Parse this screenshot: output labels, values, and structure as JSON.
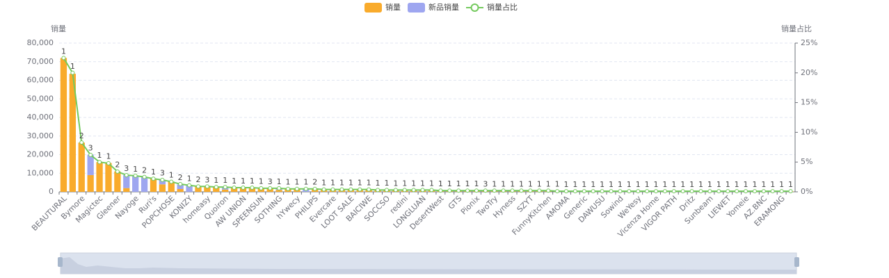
{
  "chart_data": {
    "type": "bar",
    "y_axis_label": "销量",
    "y2_axis_label": "销量占比",
    "categories": [
      "BEAUTURAL",
      null,
      "Bymore",
      null,
      "Magictec",
      null,
      "Gleener",
      null,
      "Nayoge",
      null,
      "Ruri's",
      null,
      "POPCHOSE",
      null,
      "KONIZY",
      null,
      "homeasy",
      null,
      "Quoiron",
      null,
      "AW UNION",
      null,
      "SPEENSUN",
      null,
      "SOTHING",
      null,
      "hYwecy",
      null,
      "PHILIPS",
      null,
      "Evercare",
      null,
      "LOOT SALE",
      null,
      "BAICIWE",
      null,
      "SOCCSO",
      null,
      "redini",
      null,
      "LONGLUAN",
      null,
      "DesertWest",
      null,
      "GTS",
      null,
      "Pionix",
      null,
      "TwoTry",
      null,
      "Hyness",
      null,
      "SZYT",
      null,
      "FunnyKitchen",
      null,
      "AMOMA",
      null,
      "Generic",
      null,
      "DAWUSU",
      null,
      "Sowind",
      null,
      "WeYesy",
      null,
      "Vicenza Home",
      null,
      "VIGOR PATH",
      null,
      "Dritz",
      null,
      "Sunbeam",
      null,
      "LIEWET",
      null,
      "Yomeie",
      null,
      "AZ.BNC",
      null,
      "ERAMONG",
      null
    ],
    "series": [
      {
        "name": "销量",
        "type": "bar",
        "color": "#f9ab2c",
        "values": [
          72000,
          63500,
          26500,
          9000,
          16000,
          15500,
          11000,
          2000,
          0,
          0,
          7000,
          4000,
          5500,
          1500,
          0,
          3000,
          2800,
          2600,
          1200,
          2300,
          2200,
          2100,
          2000,
          1900,
          1000,
          1700,
          1600,
          0,
          1500,
          1400,
          1400,
          1300,
          1250,
          1200,
          1150,
          1100,
          1050,
          1000,
          960,
          920,
          880,
          840,
          800,
          770,
          740,
          710,
          680,
          650,
          620,
          600,
          580,
          560,
          540,
          520,
          500,
          480,
          460,
          440,
          420,
          400,
          390,
          380,
          370,
          360,
          350,
          340,
          330,
          320,
          310,
          300,
          290,
          280,
          270,
          260,
          250,
          240,
          230,
          220,
          210,
          200,
          190,
          180
        ]
      },
      {
        "name": "新品销量",
        "type": "bar",
        "color": "#9ea6f0",
        "values": [
          0,
          0,
          0,
          11000,
          0,
          0,
          0,
          7000,
          8500,
          8000,
          0,
          2500,
          0,
          2500,
          3500,
          0,
          0,
          0,
          1200,
          0,
          0,
          0,
          0,
          0,
          800,
          0,
          0,
          1500,
          0,
          0,
          0,
          0,
          0,
          0,
          0,
          0,
          0,
          0,
          0,
          0,
          0,
          0,
          0,
          0,
          0,
          0,
          0,
          0,
          0,
          0,
          0,
          0,
          0,
          0,
          0,
          0,
          0,
          0,
          0,
          0,
          0,
          0,
          0,
          0,
          0,
          0,
          0,
          0,
          0,
          0,
          0,
          0,
          0,
          0,
          0,
          0,
          0,
          0,
          0,
          0,
          0,
          0
        ]
      },
      {
        "name": "销量占比",
        "type": "line",
        "axis": "y2",
        "color": "#73c95c",
        "values": [
          22.5,
          20,
          8.3,
          6.2,
          5,
          4.8,
          3.4,
          2.8,
          2.7,
          2.5,
          2.2,
          2.0,
          1.7,
          1.3,
          1.1,
          0.9,
          0.9,
          0.8,
          0.8,
          0.7,
          0.7,
          0.7,
          0.6,
          0.6,
          0.6,
          0.5,
          0.5,
          0.5,
          0.5,
          0.4,
          0.4,
          0.4,
          0.4,
          0.4,
          0.4,
          0.3,
          0.3,
          0.3,
          0.3,
          0.3,
          0.3,
          0.3,
          0.2,
          0.2,
          0.2,
          0.2,
          0.2,
          0.2,
          0.2,
          0.2,
          0.2,
          0.2,
          0.2,
          0.2,
          0.2,
          0.1,
          0.1,
          0.1,
          0.1,
          0.1,
          0.1,
          0.1,
          0.1,
          0.1,
          0.1,
          0.1,
          0.1,
          0.1,
          0.1,
          0.1,
          0.1,
          0.1,
          0.1,
          0.1,
          0.1,
          0.1,
          0.1,
          0.1,
          0.1,
          0.1,
          0.1,
          0.1
        ]
      }
    ],
    "bar_labels": [
      1,
      1,
      2,
      3,
      1,
      1,
      2,
      3,
      1,
      2,
      1,
      3,
      1,
      2,
      1,
      2,
      3,
      1,
      1,
      1,
      1,
      1,
      1,
      3,
      1,
      1,
      1,
      1,
      2,
      1,
      1,
      1,
      1,
      1,
      1,
      1,
      1,
      1,
      1,
      1,
      1,
      1,
      1,
      1,
      1,
      1,
      1,
      3,
      1,
      1,
      1,
      1,
      1,
      1,
      1,
      1,
      1,
      1,
      1,
      1,
      1,
      1,
      1,
      1,
      1,
      1,
      1,
      1,
      1,
      1,
      1,
      1,
      1,
      1,
      1,
      1,
      1,
      1,
      1,
      1,
      1,
      1
    ],
    "ylim": [
      0,
      80000
    ],
    "yticks": [
      0,
      {
        "value": 10000,
        "label": "10,000"
      },
      {
        "value": 20000,
        "label": "20,000"
      },
      {
        "value": 30000,
        "label": "30,000"
      },
      {
        "value": 40000,
        "label": "40,000"
      },
      {
        "value": 50000,
        "label": "50,000"
      },
      {
        "value": 60000,
        "label": "60,000"
      },
      {
        "value": 70000,
        "label": "70,000"
      },
      {
        "value": 80000,
        "label": "80,000"
      }
    ],
    "y2lim": [
      0,
      25
    ],
    "y2ticks": [
      {
        "value": 0,
        "label": "0%"
      },
      {
        "value": 5,
        "label": "5%"
      },
      {
        "value": 10,
        "label": "10%"
      },
      {
        "value": 15,
        "label": "15%"
      },
      {
        "value": 20,
        "label": "20%"
      },
      {
        "value": 25,
        "label": "25%"
      }
    ],
    "grid": true,
    "stacked": true,
    "legend": "top"
  }
}
